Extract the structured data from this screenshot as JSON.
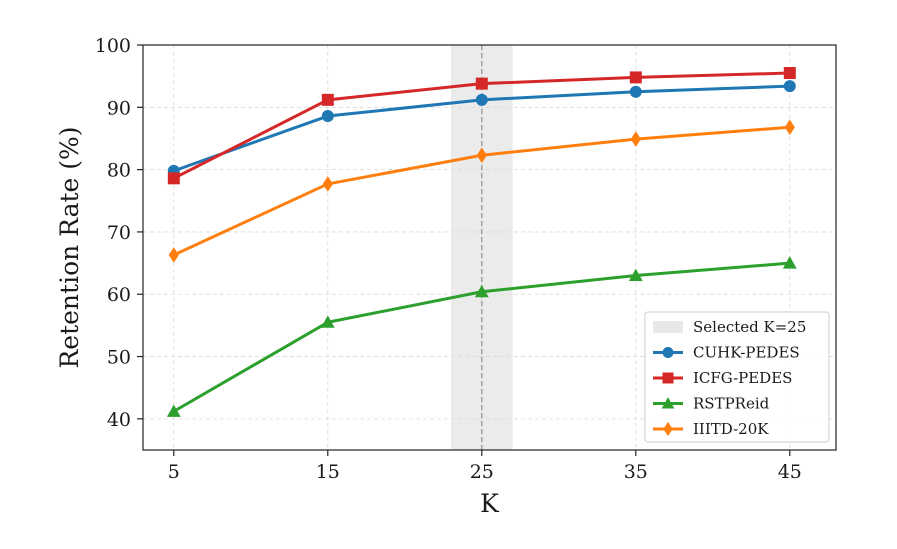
{
  "chart_data": {
    "type": "line",
    "xlabel": "K",
    "ylabel": "Retention Rate (%)",
    "x": [
      5,
      15,
      25,
      35,
      45
    ],
    "xlim": [
      3,
      48
    ],
    "ylim": [
      35,
      100
    ],
    "xticks": [
      5,
      15,
      25,
      35,
      45
    ],
    "yticks": [
      40,
      50,
      60,
      70,
      80,
      90,
      100
    ],
    "grid": true,
    "legend_position": "bottom-right",
    "highlight": {
      "label": "Selected K=25",
      "x": 25,
      "x_range": [
        23,
        27
      ],
      "color": "#e8e8e8"
    },
    "series": [
      {
        "name": "CUHK-PEDES",
        "values": [
          79.8,
          88.6,
          91.2,
          92.5,
          93.4
        ],
        "color": "#1f77b4",
        "marker": "circle"
      },
      {
        "name": "ICFG-PEDES",
        "values": [
          78.6,
          91.2,
          93.8,
          94.8,
          95.5
        ],
        "color": "#d62728",
        "marker": "square"
      },
      {
        "name": "RSTPReid",
        "values": [
          41.2,
          55.5,
          60.4,
          63.0,
          65.0
        ],
        "color": "#2ca02c",
        "marker": "triangle"
      },
      {
        "name": "IIITD-20K",
        "values": [
          66.3,
          77.7,
          82.3,
          84.9,
          86.8
        ],
        "color": "#ff7f0e",
        "marker": "diamond"
      }
    ]
  }
}
